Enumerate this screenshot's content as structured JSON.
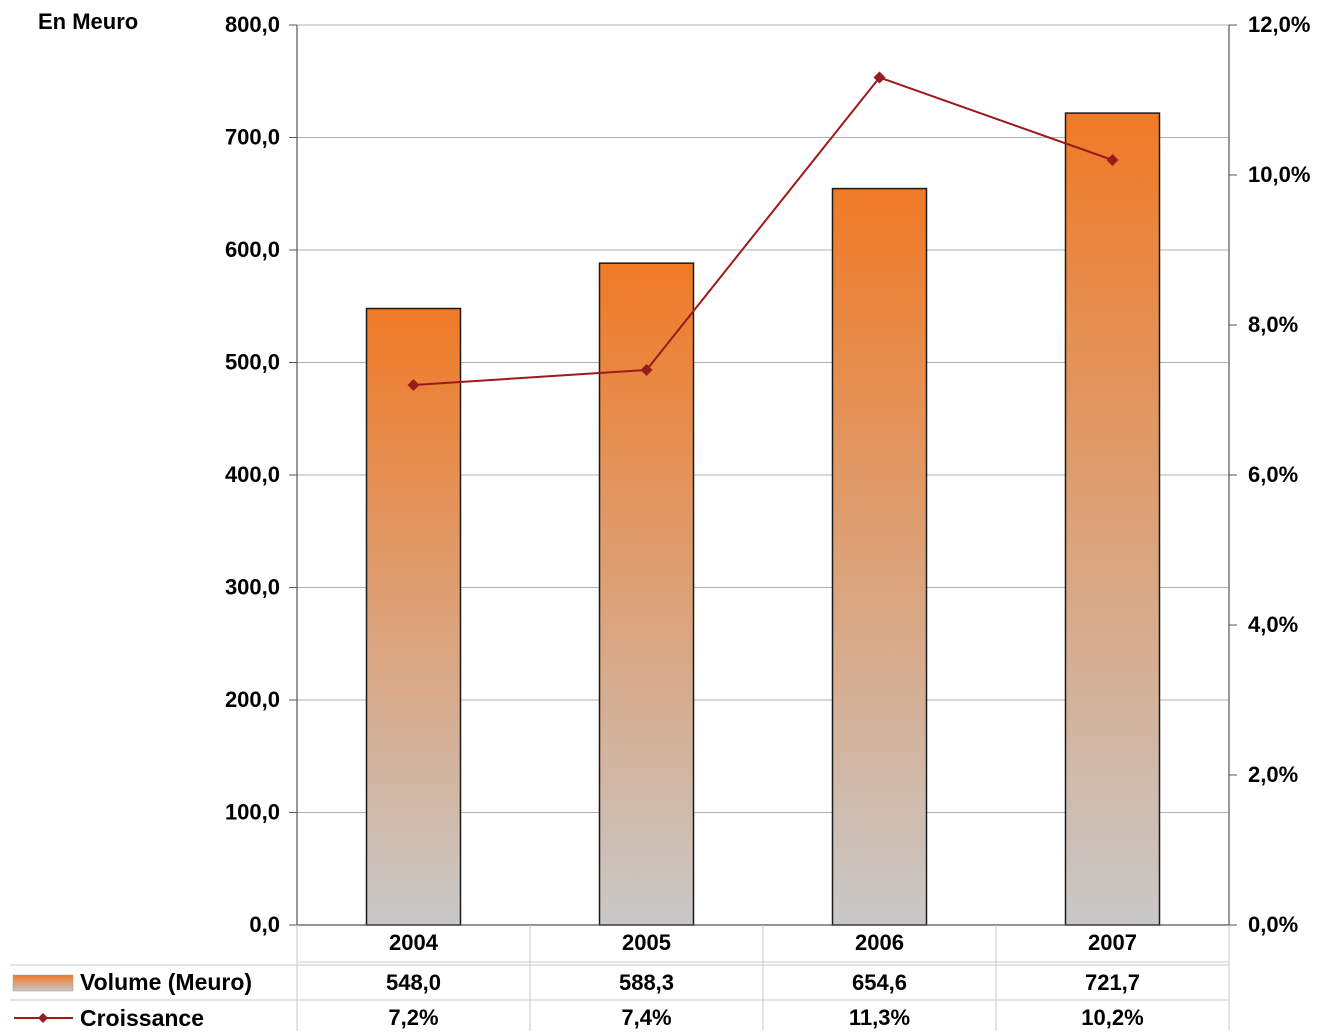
{
  "chart_data": {
    "type": "bar",
    "unit_label": "En Meuro",
    "categories": [
      "2004",
      "2005",
      "2006",
      "2007"
    ],
    "series": [
      {
        "name": "Volume (Meuro)",
        "type": "bar",
        "axis": "left",
        "values": [
          548.0,
          588.3,
          654.6,
          721.7
        ],
        "value_labels": [
          "548,0",
          "588,3",
          "654,6",
          "721,7"
        ]
      },
      {
        "name": "Croissance",
        "type": "line",
        "axis": "right",
        "values": [
          7.2,
          7.4,
          11.3,
          10.2
        ],
        "value_labels": [
          "7,2%",
          "7,4%",
          "11,3%",
          "10,2%"
        ]
      }
    ],
    "y_left": {
      "range": [
        0,
        800
      ],
      "ticks": [
        0,
        100,
        200,
        300,
        400,
        500,
        600,
        700,
        800
      ],
      "tick_labels": [
        "0,0",
        "100,0",
        "200,0",
        "300,0",
        "400,0",
        "500,0",
        "600,0",
        "700,0",
        "800,0"
      ]
    },
    "y_right": {
      "range": [
        0,
        12
      ],
      "ticks": [
        0,
        2,
        4,
        6,
        8,
        10,
        12
      ],
      "tick_labels": [
        "0,0%",
        "2,0%",
        "4,0%",
        "6,0%",
        "8,0%",
        "10,0%",
        "12,0%"
      ]
    },
    "grid": true,
    "legend": "data-table-below",
    "colors": {
      "bar_top": "#f07a26",
      "bar_bottom": "#c8c8c8",
      "line": "#9b1b1b",
      "grid": "#b0b0b0",
      "table_rule": "#c8c8c8"
    }
  }
}
